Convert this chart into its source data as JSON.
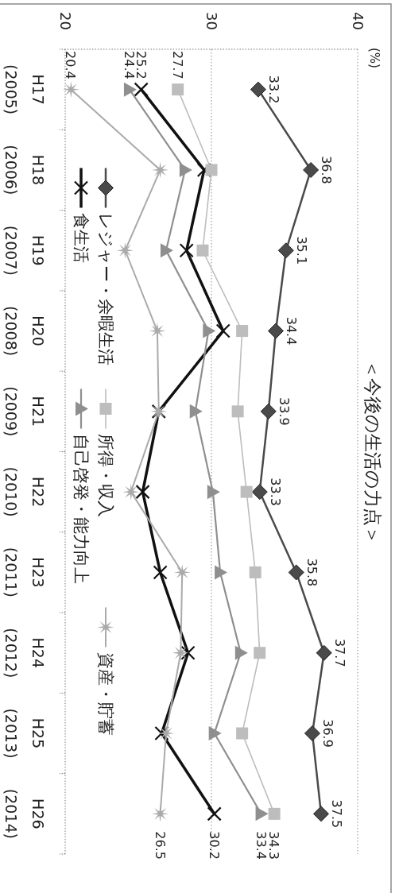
{
  "chart_data": {
    "type": "line",
    "orientation": "horizontal",
    "title": "＜今後の生活の力点＞",
    "annotations": [
      "(%)"
    ],
    "categories": [
      "H17\n(2005)",
      "H18\n(2006)",
      "H19\n(2007)",
      "H20\n(2008)",
      "H21\n(2009)",
      "H22\n(2010)",
      "H23\n(2011)",
      "H24\n(2012)",
      "H25\n(2013)",
      "H26\n(2014)"
    ],
    "xlim": [
      20,
      40
    ],
    "xticks": [
      20,
      30,
      40
    ],
    "grid": "x",
    "legend": "left",
    "series": [
      {
        "name": "レジャー・余暇生活",
        "color": "#4a4a4a",
        "marker": "diamond",
        "values": [
          33.2,
          36.8,
          35.1,
          34.4,
          33.9,
          33.3,
          35.8,
          37.7,
          36.9,
          37.5
        ],
        "value_labels": [
          "33.2",
          "36.8",
          "35.1",
          "34.4",
          "33.9",
          "33.3",
          "35.8",
          "37.7",
          "36.9",
          "37.5"
        ]
      },
      {
        "name": "食生活",
        "color": "#111111",
        "marker": "cross",
        "values": [
          25.2,
          29.5,
          28.3,
          30.8,
          26.4,
          25.3,
          26.5,
          28.4,
          26.6,
          30.2
        ],
        "value_labels": [
          "25.2",
          null,
          null,
          null,
          null,
          null,
          null,
          null,
          null,
          "30.2"
        ]
      },
      {
        "name": "所得・収入",
        "color": "#bdbdbd",
        "marker": "square",
        "values": [
          27.7,
          30.0,
          29.4,
          32.1,
          31.8,
          32.4,
          33.0,
          33.3,
          32.1,
          34.3
        ],
        "value_labels": [
          "27.7",
          null,
          null,
          null,
          null,
          null,
          null,
          null,
          null,
          "34.3"
        ]
      },
      {
        "name": "自己啓発・能力向上",
        "color": "#8f8f8f",
        "marker": "triangle",
        "values": [
          24.4,
          28.2,
          26.9,
          29.8,
          28.9,
          30.1,
          30.6,
          32.0,
          30.2,
          33.4
        ],
        "value_labels": [
          "24.4",
          null,
          null,
          null,
          null,
          null,
          null,
          null,
          null,
          "33.4"
        ]
      },
      {
        "name": "資産・貯蓄",
        "color": "#aaaaaa",
        "marker": "star",
        "values": [
          20.4,
          26.5,
          24.1,
          26.3,
          26.4,
          24.5,
          28.0,
          27.9,
          26.9,
          26.5
        ],
        "value_labels": [
          "20.4",
          null,
          null,
          null,
          null,
          null,
          null,
          null,
          null,
          "26.5"
        ]
      }
    ]
  }
}
